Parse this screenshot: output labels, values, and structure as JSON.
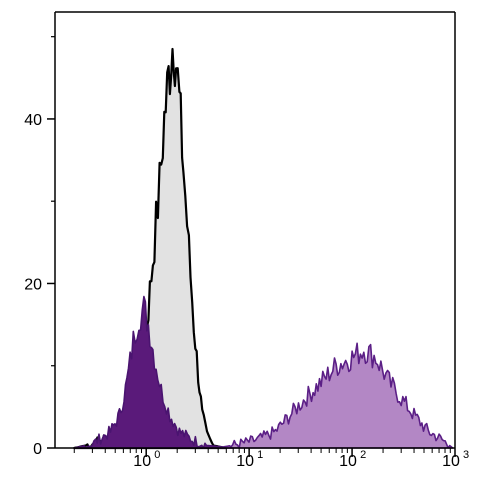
{
  "chart_data": {
    "type": "area",
    "title": "",
    "xlabel": "",
    "ylabel": "",
    "xscale": "log",
    "xlim": [
      0.13,
      1000
    ],
    "ylim": [
      0,
      53
    ],
    "grid": false,
    "legend": "none",
    "y_ticks": [
      {
        "value": 0,
        "label": "0"
      },
      {
        "value": 20,
        "label": "20"
      },
      {
        "value": 40,
        "label": "40"
      }
    ],
    "x_ticks": [
      {
        "value": 1,
        "base": "10",
        "exp": "0"
      },
      {
        "value": 10,
        "base": "10",
        "exp": "1"
      },
      {
        "value": 100,
        "base": "10",
        "exp": "2"
      },
      {
        "value": 1000,
        "base": "10",
        "exp": "3"
      }
    ],
    "series": [
      {
        "fill": "#e2e2e2",
        "stroke": "#000000",
        "points": [
          [
            0.2,
            0
          ],
          [
            0.3,
            0.5
          ],
          [
            0.45,
            1.5
          ],
          [
            0.6,
            3
          ],
          [
            0.75,
            6
          ],
          [
            0.9,
            10
          ],
          [
            1.05,
            17
          ],
          [
            1.2,
            25
          ],
          [
            1.35,
            32
          ],
          [
            1.5,
            40
          ],
          [
            1.65,
            45
          ],
          [
            1.75,
            48
          ],
          [
            1.85,
            50
          ],
          [
            1.95,
            47
          ],
          [
            2.1,
            42
          ],
          [
            2.3,
            34
          ],
          [
            2.6,
            24
          ],
          [
            2.9,
            15
          ],
          [
            3.2,
            9
          ],
          [
            3.5,
            4
          ],
          [
            3.9,
            1.5
          ],
          [
            4.5,
            0.3
          ],
          [
            6,
            0
          ]
        ]
      },
      {
        "fill": "#5a1a7a",
        "stroke": "#4a1470",
        "points": [
          [
            0.2,
            0
          ],
          [
            0.3,
            0.5
          ],
          [
            0.45,
            2
          ],
          [
            0.55,
            4
          ],
          [
            0.65,
            8
          ],
          [
            0.75,
            13
          ],
          [
            0.85,
            16
          ],
          [
            0.95,
            17
          ],
          [
            1.05,
            15
          ],
          [
            1.2,
            11
          ],
          [
            1.4,
            7
          ],
          [
            1.7,
            4
          ],
          [
            2.1,
            2
          ],
          [
            2.8,
            1
          ],
          [
            4,
            0.3
          ],
          [
            7,
            0
          ]
        ]
      },
      {
        "fill": "#ab7abf",
        "stroke": "#5b1f86",
        "points": [
          [
            5,
            0
          ],
          [
            8,
            0.5
          ],
          [
            12,
            1
          ],
          [
            18,
            2
          ],
          [
            25,
            4
          ],
          [
            35,
            6
          ],
          [
            50,
            8
          ],
          [
            70,
            10
          ],
          [
            100,
            11
          ],
          [
            130,
            12
          ],
          [
            170,
            11
          ],
          [
            230,
            8
          ],
          [
            300,
            6
          ],
          [
            400,
            4
          ],
          [
            550,
            2
          ],
          [
            750,
            1
          ],
          [
            950,
            0
          ]
        ]
      }
    ]
  }
}
